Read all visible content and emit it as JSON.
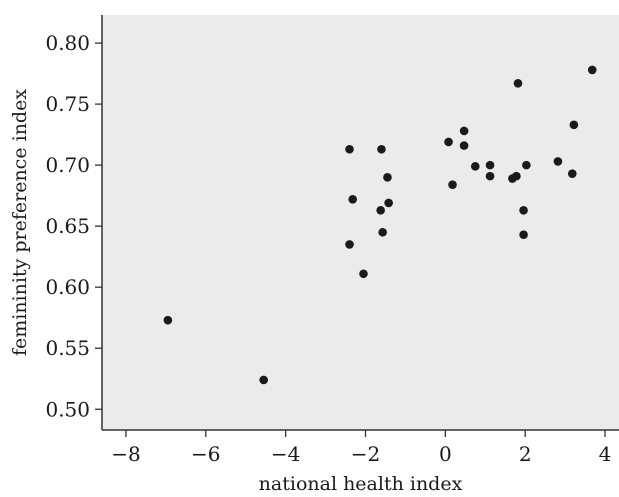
{
  "chart_data": {
    "type": "scatter",
    "xlabel": "national health index",
    "ylabel": "femininity preference index",
    "xlim": [
      -8.6,
      4.35
    ],
    "ylim": [
      0.483,
      0.823
    ],
    "xticks": [
      -8,
      -6,
      -4,
      -2,
      0,
      2,
      4
    ],
    "yticks": [
      0.5,
      0.55,
      0.6,
      0.65,
      0.7,
      0.75,
      0.8
    ],
    "xtick_labels": [
      "−8",
      "−6",
      "−4",
      "−2",
      "0",
      "2",
      "4"
    ],
    "ytick_labels": [
      "0.50",
      "0.55",
      "0.60",
      "0.65",
      "0.70",
      "0.75",
      "0.80"
    ],
    "grid": false,
    "background_color": "#ebebeb",
    "point_color": "#1a1a1a",
    "points": [
      {
        "x": -6.95,
        "y": 0.573
      },
      {
        "x": -4.55,
        "y": 0.524
      },
      {
        "x": -2.4,
        "y": 0.713
      },
      {
        "x": -2.32,
        "y": 0.672
      },
      {
        "x": -2.4,
        "y": 0.635
      },
      {
        "x": -2.05,
        "y": 0.611
      },
      {
        "x": -1.6,
        "y": 0.713
      },
      {
        "x": -1.45,
        "y": 0.69
      },
      {
        "x": -1.42,
        "y": 0.669
      },
      {
        "x": -1.62,
        "y": 0.663
      },
      {
        "x": -1.57,
        "y": 0.645
      },
      {
        "x": 0.08,
        "y": 0.719
      },
      {
        "x": 0.18,
        "y": 0.684
      },
      {
        "x": 0.47,
        "y": 0.728
      },
      {
        "x": 0.47,
        "y": 0.716
      },
      {
        "x": 0.75,
        "y": 0.699
      },
      {
        "x": 1.12,
        "y": 0.7
      },
      {
        "x": 1.12,
        "y": 0.691
      },
      {
        "x": 1.68,
        "y": 0.689
      },
      {
        "x": 1.78,
        "y": 0.691
      },
      {
        "x": 1.82,
        "y": 0.767
      },
      {
        "x": 1.96,
        "y": 0.663
      },
      {
        "x": 1.96,
        "y": 0.643
      },
      {
        "x": 2.03,
        "y": 0.7
      },
      {
        "x": 2.82,
        "y": 0.703
      },
      {
        "x": 3.18,
        "y": 0.693
      },
      {
        "x": 3.22,
        "y": 0.733
      },
      {
        "x": 3.68,
        "y": 0.778
      }
    ]
  }
}
